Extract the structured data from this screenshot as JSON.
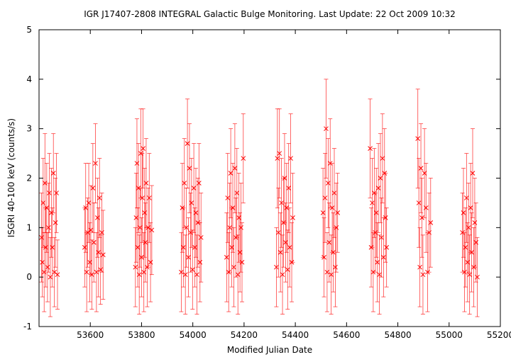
{
  "chart_data": {
    "type": "scatter",
    "title": "IGR J17407-2808    INTEGRAL Galactic Bulge Monitoring.  Last Update: 22 Oct 2009 10:32",
    "xlabel": "Modified Julian Date",
    "ylabel": "ISGRI 40-100 keV (counts/s)",
    "xlim": [
      53400,
      55200
    ],
    "ylim": [
      -1,
      5
    ],
    "x_ticks": [
      53600,
      53800,
      54000,
      54200,
      54400,
      54600,
      54800,
      55000,
      55200
    ],
    "y_ticks": [
      -1,
      0,
      1,
      2,
      3,
      4,
      5
    ],
    "x_tick_labels": [
      "53600",
      "53800",
      "54000",
      "54200",
      "54400",
      "54600",
      "54800",
      "55000",
      "55200"
    ],
    "y_tick_labels": [
      "-1",
      "0",
      "1",
      "2",
      "3",
      "4",
      "5"
    ],
    "grid": false,
    "marker": "x",
    "error_bars": true,
    "color": "#ff0000",
    "series": [
      {
        "points": [
          {
            "x": 53410,
            "y": 0.8,
            "err": 0.9
          },
          {
            "x": 53413,
            "y": 0.3,
            "err": 0.7
          },
          {
            "x": 53416,
            "y": 1.5,
            "err": 0.9
          },
          {
            "x": 53420,
            "y": 0.1,
            "err": 0.8
          },
          {
            "x": 53423,
            "y": 1.9,
            "err": 1.0
          },
          {
            "x": 53426,
            "y": 0.6,
            "err": 0.8
          },
          {
            "x": 53430,
            "y": 1.4,
            "err": 0.9
          },
          {
            "x": 53433,
            "y": 0.2,
            "err": 0.7
          },
          {
            "x": 53437,
            "y": 1.0,
            "err": 0.9
          },
          {
            "x": 53440,
            "y": 1.7,
            "err": 0.8
          },
          {
            "x": 53444,
            "y": 0.0,
            "err": 0.8
          },
          {
            "x": 53448,
            "y": 1.3,
            "err": 0.9
          },
          {
            "x": 53452,
            "y": 0.6,
            "err": 0.8
          },
          {
            "x": 53456,
            "y": 2.1,
            "err": 0.8
          },
          {
            "x": 53460,
            "y": 0.1,
            "err": 0.7
          },
          {
            "x": 53464,
            "y": 1.1,
            "err": 0.9
          },
          {
            "x": 53468,
            "y": 1.7,
            "err": 0.8
          },
          {
            "x": 53472,
            "y": 0.05,
            "err": 0.7
          },
          {
            "x": 53578,
            "y": 0.6,
            "err": 0.8
          },
          {
            "x": 53582,
            "y": 1.4,
            "err": 0.9
          },
          {
            "x": 53586,
            "y": 0.1,
            "err": 0.8
          },
          {
            "x": 53590,
            "y": 0.9,
            "err": 0.7
          },
          {
            "x": 53594,
            "y": 1.5,
            "err": 0.8
          },
          {
            "x": 53598,
            "y": 0.3,
            "err": 0.8
          },
          {
            "x": 53602,
            "y": 0.95,
            "err": 0.9
          },
          {
            "x": 53606,
            "y": 0.05,
            "err": 0.7
          },
          {
            "x": 53610,
            "y": 1.8,
            "err": 0.9
          },
          {
            "x": 53614,
            "y": 0.7,
            "err": 0.8
          },
          {
            "x": 53620,
            "y": 2.3,
            "err": 0.8
          },
          {
            "x": 53624,
            "y": 0.1,
            "err": 0.8
          },
          {
            "x": 53628,
            "y": 1.2,
            "err": 0.8
          },
          {
            "x": 53632,
            "y": 0.5,
            "err": 0.9
          },
          {
            "x": 53636,
            "y": 1.6,
            "err": 0.8
          },
          {
            "x": 53640,
            "y": 0.15,
            "err": 0.7
          },
          {
            "x": 53645,
            "y": 0.9,
            "err": 0.8
          },
          {
            "x": 53650,
            "y": 0.45,
            "err": 0.9
          },
          {
            "x": 53776,
            "y": 0.2,
            "err": 0.8
          },
          {
            "x": 53779,
            "y": 1.2,
            "err": 0.9
          },
          {
            "x": 53782,
            "y": 2.3,
            "err": 0.9
          },
          {
            "x": 53785,
            "y": 0.6,
            "err": 0.8
          },
          {
            "x": 53788,
            "y": 1.8,
            "err": 0.9
          },
          {
            "x": 53791,
            "y": 0.05,
            "err": 0.8
          },
          {
            "x": 53794,
            "y": 1.0,
            "err": 0.8
          },
          {
            "x": 53797,
            "y": 2.5,
            "err": 0.9
          },
          {
            "x": 53800,
            "y": 0.4,
            "err": 0.8
          },
          {
            "x": 53803,
            "y": 1.6,
            "err": 0.9
          },
          {
            "x": 53806,
            "y": 2.6,
            "err": 0.8
          },
          {
            "x": 53809,
            "y": 0.1,
            "err": 0.8
          },
          {
            "x": 53812,
            "y": 1.3,
            "err": 0.9
          },
          {
            "x": 53815,
            "y": 0.7,
            "err": 0.8
          },
          {
            "x": 53818,
            "y": 1.9,
            "err": 0.9
          },
          {
            "x": 53822,
            "y": 0.2,
            "err": 0.8
          },
          {
            "x": 53826,
            "y": 1.0,
            "err": 0.8
          },
          {
            "x": 53830,
            "y": 1.6,
            "err": 0.9
          },
          {
            "x": 53835,
            "y": 0.3,
            "err": 0.8
          },
          {
            "x": 53840,
            "y": 0.95,
            "err": 0.9
          },
          {
            "x": 53955,
            "y": 0.1,
            "err": 0.8
          },
          {
            "x": 53959,
            "y": 1.4,
            "err": 0.9
          },
          {
            "x": 53963,
            "y": 0.6,
            "err": 0.8
          },
          {
            "x": 53967,
            "y": 1.9,
            "err": 0.9
          },
          {
            "x": 53971,
            "y": 0.05,
            "err": 0.8
          },
          {
            "x": 53975,
            "y": 1.0,
            "err": 0.8
          },
          {
            "x": 53979,
            "y": 2.7,
            "err": 0.9
          },
          {
            "x": 53983,
            "y": 0.4,
            "err": 0.8
          },
          {
            "x": 53987,
            "y": 2.2,
            "err": 0.9
          },
          {
            "x": 53991,
            "y": 0.9,
            "err": 0.8
          },
          {
            "x": 53995,
            "y": 1.5,
            "err": 0.9
          },
          {
            "x": 53999,
            "y": 0.15,
            "err": 0.8
          },
          {
            "x": 54004,
            "y": 1.8,
            "err": 0.9
          },
          {
            "x": 54008,
            "y": 0.6,
            "err": 0.8
          },
          {
            "x": 54012,
            "y": 1.3,
            "err": 0.9
          },
          {
            "x": 54016,
            "y": 0.05,
            "err": 0.8
          },
          {
            "x": 54020,
            "y": 1.1,
            "err": 0.9
          },
          {
            "x": 54024,
            "y": 1.9,
            "err": 0.8
          },
          {
            "x": 54028,
            "y": 0.3,
            "err": 0.8
          },
          {
            "x": 54032,
            "y": 0.8,
            "err": 0.9
          },
          {
            "x": 54132,
            "y": 0.4,
            "err": 0.9
          },
          {
            "x": 54136,
            "y": 1.6,
            "err": 0.9
          },
          {
            "x": 54140,
            "y": 0.1,
            "err": 0.8
          },
          {
            "x": 54144,
            "y": 1.0,
            "err": 0.9
          },
          {
            "x": 54148,
            "y": 2.1,
            "err": 0.9
          },
          {
            "x": 54152,
            "y": 0.6,
            "err": 0.8
          },
          {
            "x": 54156,
            "y": 1.4,
            "err": 0.9
          },
          {
            "x": 54160,
            "y": 0.2,
            "err": 0.8
          },
          {
            "x": 54164,
            "y": 2.2,
            "err": 0.9
          },
          {
            "x": 54168,
            "y": 0.8,
            "err": 0.8
          },
          {
            "x": 54172,
            "y": 1.7,
            "err": 0.9
          },
          {
            "x": 54176,
            "y": 0.05,
            "err": 0.8
          },
          {
            "x": 54180,
            "y": 1.2,
            "err": 0.9
          },
          {
            "x": 54184,
            "y": 0.5,
            "err": 0.8
          },
          {
            "x": 54188,
            "y": 1.0,
            "err": 0.9
          },
          {
            "x": 54192,
            "y": 0.3,
            "err": 0.8
          },
          {
            "x": 54197,
            "y": 2.4,
            "err": 0.9
          },
          {
            "x": 54326,
            "y": 0.2,
            "err": 0.8
          },
          {
            "x": 54330,
            "y": 2.4,
            "err": 1.0
          },
          {
            "x": 54334,
            "y": 0.9,
            "err": 0.9
          },
          {
            "x": 54338,
            "y": 2.5,
            "err": 0.9
          },
          {
            "x": 54342,
            "y": 0.5,
            "err": 0.8
          },
          {
            "x": 54346,
            "y": 1.5,
            "err": 0.9
          },
          {
            "x": 54350,
            "y": 0.05,
            "err": 0.8
          },
          {
            "x": 54354,
            "y": 1.1,
            "err": 0.9
          },
          {
            "x": 54358,
            "y": 2.0,
            "err": 0.9
          },
          {
            "x": 54362,
            "y": 0.7,
            "err": 0.8
          },
          {
            "x": 54366,
            "y": 1.4,
            "err": 0.9
          },
          {
            "x": 54370,
            "y": 0.15,
            "err": 0.8
          },
          {
            "x": 54374,
            "y": 1.8,
            "err": 0.9
          },
          {
            "x": 54378,
            "y": 0.6,
            "err": 0.8
          },
          {
            "x": 54382,
            "y": 2.4,
            "err": 0.9
          },
          {
            "x": 54386,
            "y": 0.3,
            "err": 0.8
          },
          {
            "x": 54390,
            "y": 1.2,
            "err": 0.9
          },
          {
            "x": 54508,
            "y": 1.3,
            "err": 0.9
          },
          {
            "x": 54512,
            "y": 0.4,
            "err": 0.8
          },
          {
            "x": 54516,
            "y": 1.6,
            "err": 0.9
          },
          {
            "x": 54520,
            "y": 3.0,
            "err": 1.0
          },
          {
            "x": 54524,
            "y": 0.1,
            "err": 0.8
          },
          {
            "x": 54528,
            "y": 1.9,
            "err": 0.9
          },
          {
            "x": 54532,
            "y": 0.7,
            "err": 0.8
          },
          {
            "x": 54536,
            "y": 2.3,
            "err": 0.9
          },
          {
            "x": 54540,
            "y": 0.05,
            "err": 0.8
          },
          {
            "x": 54544,
            "y": 1.4,
            "err": 0.9
          },
          {
            "x": 54548,
            "y": 0.5,
            "err": 0.8
          },
          {
            "x": 54552,
            "y": 1.7,
            "err": 0.9
          },
          {
            "x": 54556,
            "y": 0.2,
            "err": 0.8
          },
          {
            "x": 54560,
            "y": 1.0,
            "err": 0.9
          },
          {
            "x": 54565,
            "y": 1.3,
            "err": 0.8
          },
          {
            "x": 54692,
            "y": 2.6,
            "err": 1.0
          },
          {
            "x": 54696,
            "y": 0.6,
            "err": 0.8
          },
          {
            "x": 54700,
            "y": 1.5,
            "err": 0.9
          },
          {
            "x": 54704,
            "y": 0.1,
            "err": 0.8
          },
          {
            "x": 54708,
            "y": 1.7,
            "err": 0.9
          },
          {
            "x": 54712,
            "y": 0.9,
            "err": 0.8
          },
          {
            "x": 54716,
            "y": 1.3,
            "err": 0.9
          },
          {
            "x": 54720,
            "y": 0.3,
            "err": 0.8
          },
          {
            "x": 54724,
            "y": 1.8,
            "err": 0.9
          },
          {
            "x": 54728,
            "y": 0.05,
            "err": 0.8
          },
          {
            "x": 54732,
            "y": 2.0,
            "err": 0.9
          },
          {
            "x": 54736,
            "y": 0.8,
            "err": 0.8
          },
          {
            "x": 54740,
            "y": 2.4,
            "err": 0.9
          },
          {
            "x": 54744,
            "y": 0.4,
            "err": 0.8
          },
          {
            "x": 54748,
            "y": 2.1,
            "err": 0.9
          },
          {
            "x": 54752,
            "y": 1.2,
            "err": 0.9
          },
          {
            "x": 54756,
            "y": 0.6,
            "err": 0.8
          },
          {
            "x": 54878,
            "y": 2.8,
            "err": 1.0
          },
          {
            "x": 54882,
            "y": 1.5,
            "err": 0.9
          },
          {
            "x": 54886,
            "y": 0.2,
            "err": 0.8
          },
          {
            "x": 54890,
            "y": 2.2,
            "err": 0.9
          },
          {
            "x": 54894,
            "y": 1.2,
            "err": 0.8
          },
          {
            "x": 54898,
            "y": 0.05,
            "err": 0.8
          },
          {
            "x": 54904,
            "y": 2.1,
            "err": 0.9
          },
          {
            "x": 54910,
            "y": 1.4,
            "err": 0.9
          },
          {
            "x": 54916,
            "y": 0.1,
            "err": 0.8
          },
          {
            "x": 54922,
            "y": 0.9,
            "err": 0.8
          },
          {
            "x": 54928,
            "y": 1.1,
            "err": 0.9
          },
          {
            "x": 55052,
            "y": 0.9,
            "err": 0.8
          },
          {
            "x": 55056,
            "y": 1.3,
            "err": 0.9
          },
          {
            "x": 55060,
            "y": 0.1,
            "err": 0.8
          },
          {
            "x": 55064,
            "y": 0.6,
            "err": 0.8
          },
          {
            "x": 55068,
            "y": 1.6,
            "err": 0.9
          },
          {
            "x": 55072,
            "y": 0.3,
            "err": 0.8
          },
          {
            "x": 55076,
            "y": 1.0,
            "err": 0.9
          },
          {
            "x": 55080,
            "y": 0.05,
            "err": 0.8
          },
          {
            "x": 55084,
            "y": 1.4,
            "err": 0.9
          },
          {
            "x": 55088,
            "y": 0.5,
            "err": 0.8
          },
          {
            "x": 55092,
            "y": 2.1,
            "err": 0.9
          },
          {
            "x": 55096,
            "y": 0.2,
            "err": 0.8
          },
          {
            "x": 55100,
            "y": 1.1,
            "err": 0.9
          },
          {
            "x": 55105,
            "y": 0.7,
            "err": 0.8
          },
          {
            "x": 55110,
            "y": 0.0,
            "err": 0.8
          }
        ]
      }
    ]
  }
}
